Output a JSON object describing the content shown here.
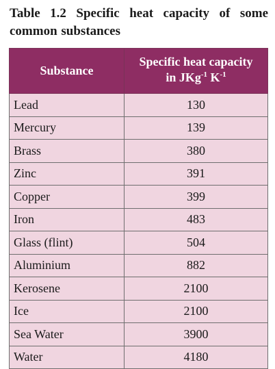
{
  "caption": "Table 1.2 Specific heat capacity of some common substances",
  "table": {
    "header_substance": "Substance",
    "header_capacity_line1": "Specific heat capacity",
    "header_capacity_line2": {
      "prefix": "in JKg",
      "sup1": "-1",
      "middle": " K",
      "sup2": "-1"
    },
    "rows": [
      {
        "substance": "Lead",
        "value": "130"
      },
      {
        "substance": "Mercury",
        "value": "139"
      },
      {
        "substance": "Brass",
        "value": "380"
      },
      {
        "substance": "Zinc",
        "value": "391"
      },
      {
        "substance": "Copper",
        "value": "399"
      },
      {
        "substance": "Iron",
        "value": "483"
      },
      {
        "substance": "Glass (flint)",
        "value": "504"
      },
      {
        "substance": "Aluminium",
        "value": "882"
      },
      {
        "substance": "Kerosene",
        "value": "2100"
      },
      {
        "substance": "Ice",
        "value": "2100"
      },
      {
        "substance": "Sea Water",
        "value": "3900"
      },
      {
        "substance": "Water",
        "value": "4180"
      }
    ]
  },
  "colors": {
    "header_background": "#8e2d63",
    "header_text": "#ffffff",
    "row_background": "#f0d5e0",
    "border": "#6e6e6e"
  }
}
